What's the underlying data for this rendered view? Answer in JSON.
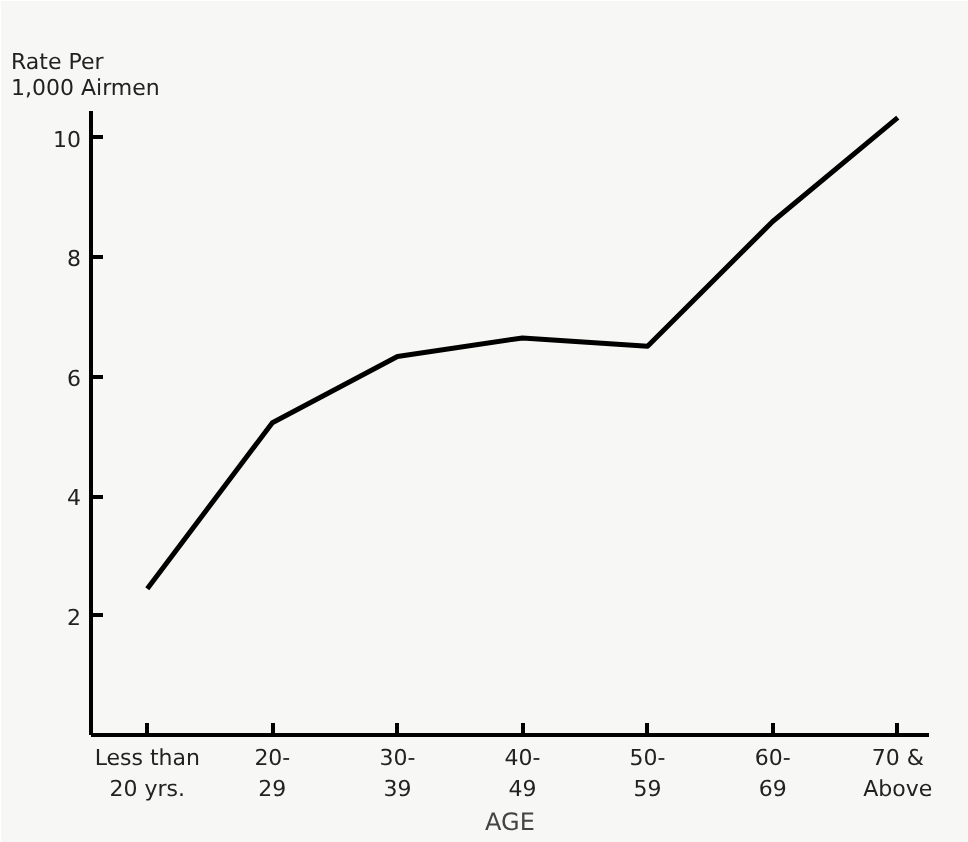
{
  "chart_data": {
    "type": "line",
    "ylabel": "Rate Per\n1,000 Airmen",
    "xlabel": "AGE",
    "categories": [
      "Less than\n20 yrs.",
      "20-\n29",
      "30-\n39",
      "40-\n49",
      "50-\n59",
      "60-\n69",
      "70 &\nAbove"
    ],
    "series": [
      {
        "color": "#000000",
        "values": [
          2.45,
          5.23,
          6.34,
          6.65,
          6.51,
          8.6,
          10.34
        ]
      }
    ],
    "ylim": [
      0,
      10.45
    ],
    "yticks": [
      2,
      4,
      6,
      8,
      10
    ],
    "grid": false,
    "marker": "none",
    "line_style": "solid"
  }
}
